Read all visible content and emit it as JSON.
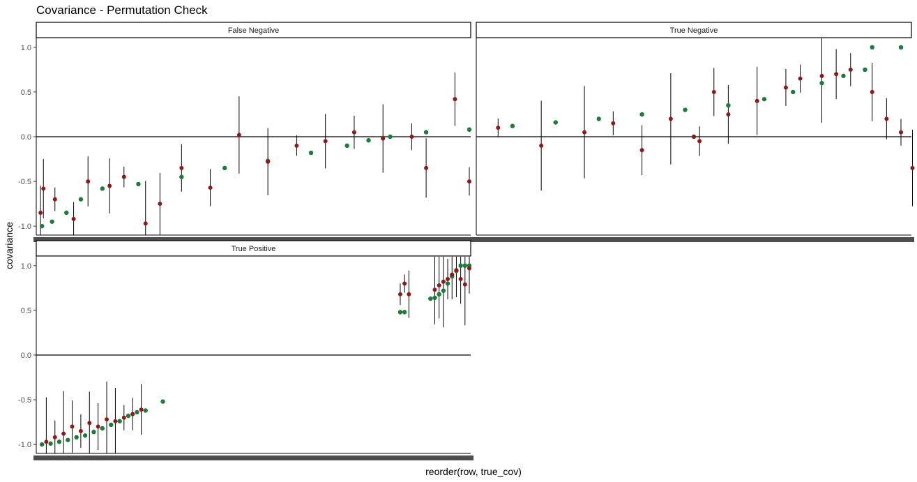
{
  "chart_data": {
    "type": "scatter",
    "title": "Covariance - Permutation Check",
    "xlabel": "reorder(row, true_cov)",
    "ylabel": "covariance",
    "ylim": [
      -1.1,
      1.1
    ],
    "yticks": [
      -1.0,
      -0.5,
      0.0,
      0.5,
      1.0
    ],
    "yticks_labels": [
      "-1.0",
      "-0.5",
      "0.0",
      "0.5",
      "1.0"
    ],
    "reference_line": 0,
    "grid": false,
    "colors": {
      "true_cov": "#1e7b3a",
      "estimate": "#8b1a1a",
      "interval": "#000000"
    },
    "panels": [
      {
        "label": "False Negative",
        "x_count": 300,
        "true_cov": [
          [
            3,
            -1.0
          ],
          [
            10,
            -0.95
          ],
          [
            20,
            -0.85
          ],
          [
            30,
            -0.7
          ],
          [
            45,
            -0.58
          ],
          [
            70,
            -0.53
          ],
          [
            100,
            -0.45
          ],
          [
            130,
            -0.35
          ],
          [
            160,
            -0.27
          ],
          [
            190,
            -0.18
          ],
          [
            215,
            -0.1
          ],
          [
            230,
            -0.04
          ],
          [
            245,
            0.0
          ],
          [
            270,
            0.05
          ],
          [
            300,
            0.08
          ],
          [
            330,
            0.12
          ],
          [
            360,
            0.16
          ],
          [
            390,
            0.2
          ],
          [
            420,
            0.25
          ],
          [
            450,
            0.3
          ],
          [
            480,
            0.35
          ],
          [
            505,
            0.42
          ],
          [
            525,
            0.5
          ],
          [
            545,
            0.6
          ],
          [
            560,
            0.68
          ],
          [
            575,
            0.75
          ],
          [
            580,
            1.0
          ],
          [
            600,
            1.0
          ],
          [
            622,
            1.0
          ]
        ],
        "estimates": [
          [
            2,
            -0.85
          ],
          [
            4,
            -0.58
          ],
          [
            12,
            -0.7
          ],
          [
            25,
            -0.92
          ],
          [
            35,
            -0.5
          ],
          [
            50,
            -0.55
          ],
          [
            60,
            -0.45
          ],
          [
            75,
            -0.97
          ],
          [
            85,
            -0.75
          ],
          [
            100,
            -0.35
          ],
          [
            120,
            -0.57
          ],
          [
            140,
            0.02
          ],
          [
            160,
            -0.28
          ],
          [
            180,
            -0.1
          ],
          [
            200,
            -0.05
          ],
          [
            220,
            0.05
          ],
          [
            240,
            -0.02
          ],
          [
            260,
            0.0
          ],
          [
            270,
            -0.35
          ],
          [
            290,
            0.42
          ],
          [
            300,
            -0.5
          ],
          [
            320,
            0.1
          ],
          [
            350,
            -0.1
          ],
          [
            380,
            0.05
          ],
          [
            400,
            0.15
          ],
          [
            420,
            -0.15
          ],
          [
            440,
            0.2
          ],
          [
            460,
            -0.05
          ],
          [
            470,
            0.5
          ],
          [
            480,
            0.25
          ],
          [
            500,
            0.4
          ],
          [
            520,
            0.55
          ],
          [
            530,
            0.65
          ],
          [
            545,
            0.68
          ],
          [
            555,
            0.7
          ],
          [
            565,
            0.75
          ],
          [
            580,
            0.5
          ],
          [
            590,
            0.2
          ],
          [
            600,
            0.05
          ],
          [
            608,
            -0.35
          ],
          [
            615,
            -0.8
          ],
          [
            620,
            0.9
          ],
          [
            622,
            0.8
          ]
        ]
      },
      {
        "label": "True Negative",
        "x_count": 1,
        "true_cov": [
          [
            0.5,
            0.0
          ]
        ],
        "estimates": [
          [
            0.5,
            0.0
          ]
        ]
      },
      {
        "label": "True Positive",
        "x_count": 100,
        "true_cov": [
          [
            1,
            -1.0
          ],
          [
            3,
            -0.99
          ],
          [
            5,
            -0.97
          ],
          [
            7,
            -0.95
          ],
          [
            9,
            -0.92
          ],
          [
            11,
            -0.9
          ],
          [
            13,
            -0.86
          ],
          [
            15,
            -0.82
          ],
          [
            17,
            -0.78
          ],
          [
            19,
            -0.74
          ],
          [
            21,
            -0.68
          ],
          [
            23,
            -0.64
          ],
          [
            25,
            -0.62
          ],
          [
            29,
            -0.52
          ],
          [
            84,
            0.48
          ],
          [
            85,
            0.48
          ],
          [
            91,
            0.63
          ],
          [
            92,
            0.64
          ],
          [
            93,
            0.68
          ],
          [
            94,
            0.72
          ],
          [
            95,
            0.8
          ],
          [
            96,
            0.88
          ],
          [
            97,
            0.94
          ],
          [
            98,
            1.0
          ],
          [
            99,
            1.0
          ],
          [
            100,
            1.0
          ]
        ],
        "estimates": [
          [
            2,
            -0.97
          ],
          [
            4,
            -0.92
          ],
          [
            6,
            -0.88
          ],
          [
            8,
            -0.8
          ],
          [
            10,
            -0.85
          ],
          [
            12,
            -0.76
          ],
          [
            14,
            -0.8
          ],
          [
            16,
            -0.72
          ],
          [
            18,
            -0.74
          ],
          [
            20,
            -0.7
          ],
          [
            22,
            -0.66
          ],
          [
            24,
            -0.61
          ],
          [
            84,
            0.68
          ],
          [
            85,
            0.8
          ],
          [
            86,
            0.68
          ],
          [
            92,
            0.73
          ],
          [
            93,
            0.78
          ],
          [
            94,
            0.82
          ],
          [
            95,
            0.85
          ],
          [
            96,
            0.9
          ],
          [
            97,
            0.95
          ],
          [
            98,
            0.85
          ],
          [
            99,
            0.79
          ],
          [
            100,
            0.97
          ]
        ]
      }
    ]
  }
}
